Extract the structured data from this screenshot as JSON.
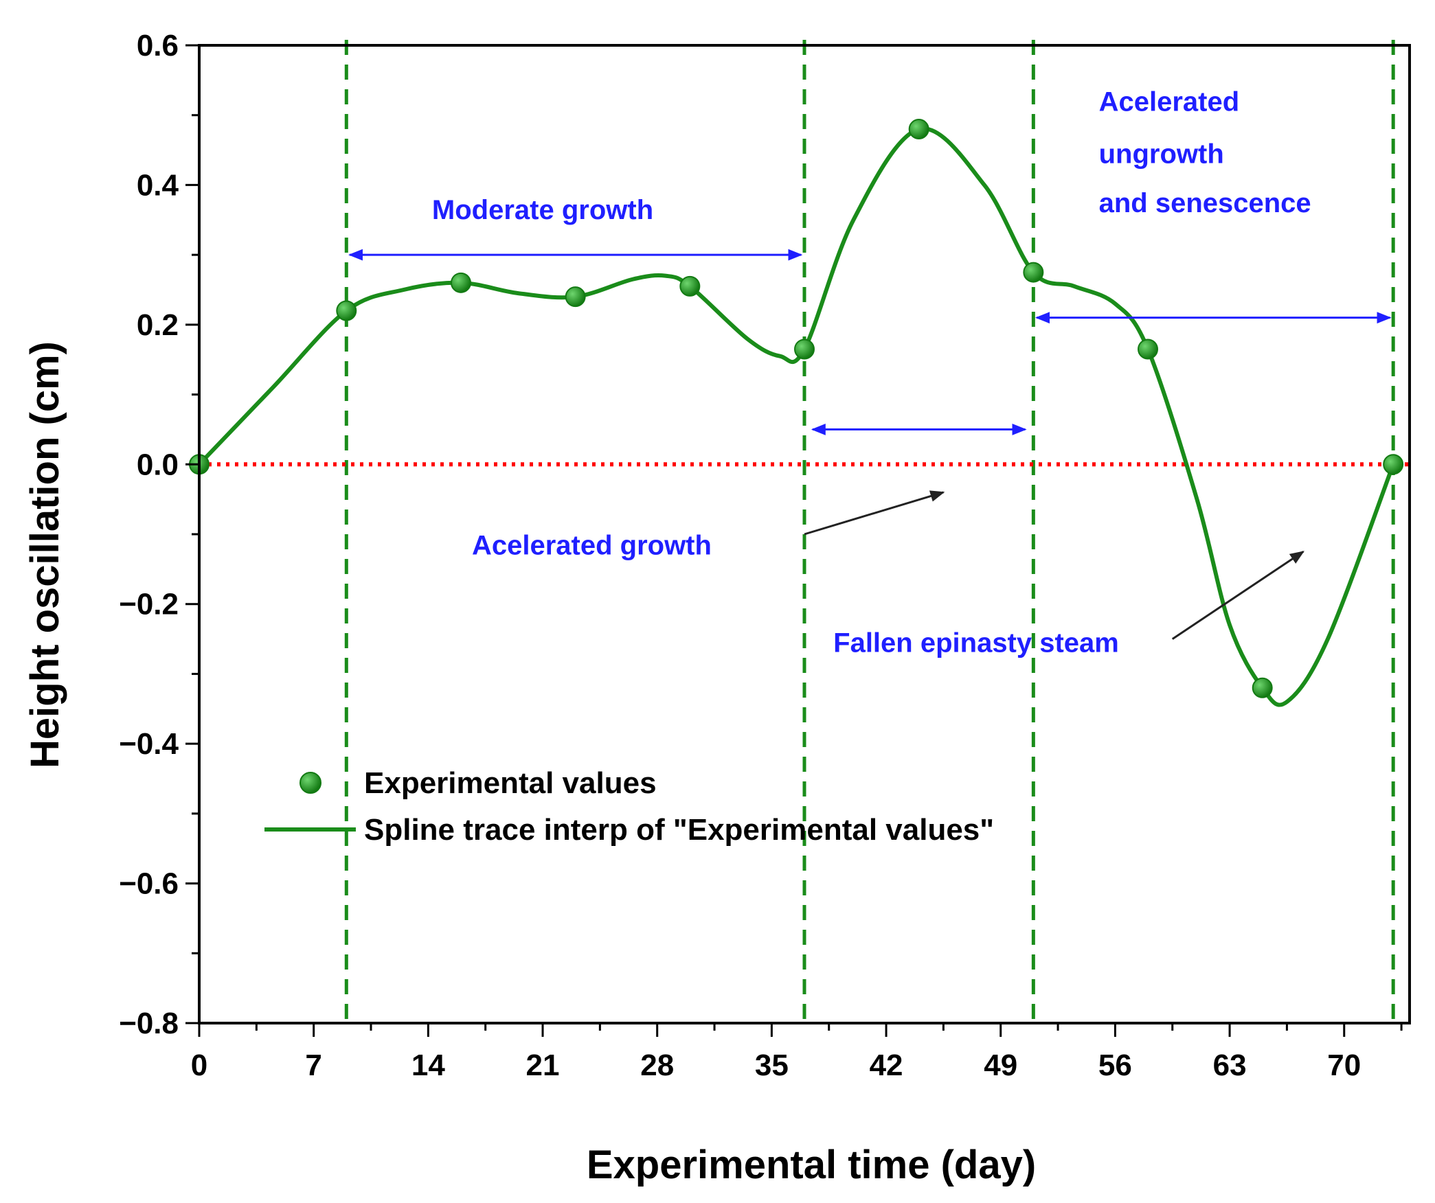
{
  "chart_data": {
    "type": "scatter",
    "xlabel": "Experimental time (day)",
    "ylabel": "Height oscillation (cm)",
    "xlim": [
      0,
      74
    ],
    "ylim": [
      -0.8,
      0.6
    ],
    "x_ticks": [
      0,
      7,
      14,
      21,
      28,
      35,
      42,
      49,
      56,
      63,
      70
    ],
    "x_tick_labels": [
      "0",
      "7",
      "14",
      "21",
      "28",
      "35",
      "42",
      "49",
      "56",
      "63",
      "70"
    ],
    "y_ticks": [
      0.6,
      0.4,
      0.2,
      0.0,
      -0.2,
      -0.4,
      -0.6,
      -0.8
    ],
    "y_tick_labels": [
      "0.6",
      "0.4",
      "0.2",
      "0.0",
      "−0.2",
      "−0.4",
      "−0.6",
      "−0.8"
    ],
    "series": [
      {
        "name": "Experimental values",
        "kind": "scatter",
        "color": "#1a8c1a",
        "x": [
          0,
          9,
          16,
          23,
          30,
          37,
          44,
          51,
          58,
          65,
          73
        ],
        "y": [
          0.0,
          0.22,
          0.26,
          0.24,
          0.255,
          0.165,
          0.48,
          0.275,
          0.165,
          -0.32,
          0.0
        ]
      },
      {
        "name": "Spline trace interp of \"Experimental values\"",
        "kind": "line",
        "color": "#1a8c1a",
        "x": [
          0,
          4.5,
          9,
          12.5,
          16,
          19.5,
          23,
          26.5,
          28.5,
          30,
          33.5,
          35.5,
          37,
          40,
          44,
          48,
          51,
          53.5,
          56,
          58,
          61,
          63,
          65,
          66.5,
          69,
          73
        ],
        "y": [
          0.0,
          0.11,
          0.22,
          0.25,
          0.26,
          0.245,
          0.24,
          0.265,
          0.27,
          0.255,
          0.18,
          0.155,
          0.165,
          0.35,
          0.48,
          0.4,
          0.275,
          0.255,
          0.23,
          0.165,
          -0.05,
          -0.23,
          -0.32,
          -0.34,
          -0.25,
          0.0
        ]
      }
    ],
    "reference_line": {
      "y": 0.0,
      "color": "#ff0000",
      "style": "dotted"
    },
    "phase_boundaries": {
      "x": [
        9,
        37,
        51,
        73
      ],
      "color": "#1a8c1a",
      "style": "dashed"
    },
    "annotations": [
      {
        "text": "Moderate growth",
        "x": 21,
        "y": 0.365
      },
      {
        "text": "Acelerated growth",
        "x": 24,
        "y": -0.115
      },
      {
        "text": "Fallen epinasty steam",
        "x": 47.5,
        "y": -0.255
      },
      {
        "text": "Acelerated",
        "x": 55,
        "y": 0.52
      },
      {
        "text": "ungrowth",
        "x": 55,
        "y": 0.445
      },
      {
        "text": "and senescence",
        "x": 55,
        "y": 0.375
      }
    ],
    "range_arrows": [
      {
        "x1": 9.2,
        "x2": 36.8,
        "y": 0.3
      },
      {
        "x1": 37.5,
        "x2": 50.5,
        "y": 0.05
      },
      {
        "x1": 51.2,
        "x2": 72.8,
        "y": 0.21
      }
    ],
    "pointer_arrows": [
      {
        "x1": 37,
        "y1": -0.1,
        "x2": 45.5,
        "y2": -0.04
      },
      {
        "x1": 59.5,
        "y1": -0.25,
        "x2": 67.5,
        "y2": -0.125
      }
    ],
    "legend": {
      "placement": "lower-left",
      "entries": [
        {
          "label": "Experimental values",
          "kind": "marker"
        },
        {
          "label": "Spline trace interp of \"Experimental values\"",
          "kind": "line"
        }
      ]
    }
  }
}
